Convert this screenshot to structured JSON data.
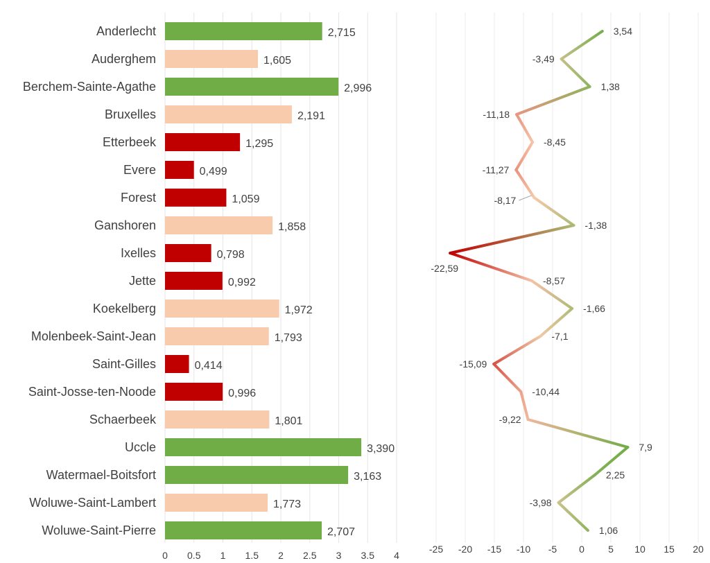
{
  "chart_data": [
    {
      "type": "bar",
      "orientation": "horizontal",
      "categories": [
        "Anderlecht",
        "Auderghem",
        "Berchem-Sainte-Agathe",
        "Bruxelles",
        "Etterbeek",
        "Evere",
        "Forest",
        "Ganshoren",
        "Ixelles",
        "Jette",
        "Koekelberg",
        "Molenbeek-Saint-Jean",
        "Saint-Gilles",
        "Saint-Josse-ten-Noode",
        "Schaerbeek",
        "Uccle",
        "Watermael-Boitsfort",
        "Woluwe-Saint-Lambert",
        "Woluwe-Saint-Pierre"
      ],
      "values": [
        2.715,
        1.605,
        2.996,
        2.191,
        1.295,
        0.499,
        1.059,
        1.858,
        0.798,
        0.992,
        1.972,
        1.793,
        0.414,
        0.996,
        1.801,
        3.39,
        3.163,
        1.773,
        2.707
      ],
      "data_labels": [
        "2,715",
        "1,605",
        "2,996",
        "2,191",
        "1,295",
        "0,499",
        "1,059",
        "1,858",
        "0,798",
        "0,992",
        "1,972",
        "1,793",
        "0,414",
        "0,996",
        "1,801",
        "3,390",
        "3,163",
        "1,773",
        "2,707"
      ],
      "bar_colors": [
        "#70ad47",
        "#f8cbad",
        "#70ad47",
        "#f8cbad",
        "#c00000",
        "#c00000",
        "#c00000",
        "#f8cbad",
        "#c00000",
        "#c00000",
        "#f8cbad",
        "#f8cbad",
        "#c00000",
        "#c00000",
        "#f8cbad",
        "#70ad47",
        "#70ad47",
        "#f8cbad",
        "#70ad47"
      ],
      "xlim": [
        0,
        4
      ],
      "xticks": [
        "0",
        "0.5",
        "1",
        "1.5",
        "2",
        "2.5",
        "3",
        "3.5",
        "4"
      ],
      "grid": true
    },
    {
      "type": "line",
      "orientation": "vertical",
      "values": [
        3.54,
        -3.49,
        1.38,
        -11.18,
        -8.45,
        -11.27,
        -8.17,
        -1.38,
        -22.59,
        -8.57,
        -1.66,
        -7.1,
        -15.09,
        -10.44,
        -9.22,
        7.9,
        2.25,
        -3.98,
        1.06
      ],
      "data_labels": [
        "3,54",
        "-3,49",
        "1,38",
        "-11,18",
        "-8,45",
        "-11,27",
        "-8,17",
        "-1,38",
        "-22,59",
        "-8,57",
        "-1,66",
        "-7,1",
        "-15,09",
        "-10,44",
        "-9,22",
        "7,9",
        "2,25",
        "-3,98",
        "1,06"
      ],
      "xlim": [
        -25,
        20
      ],
      "xticks": [
        "-25",
        "-20",
        "-15",
        "-10",
        "-5",
        "0",
        "5",
        "10",
        "15",
        "20"
      ],
      "color_scale": {
        "low": "#c00000",
        "mid": "#f8cbad",
        "high": "#70ad47"
      },
      "grid": true
    }
  ]
}
